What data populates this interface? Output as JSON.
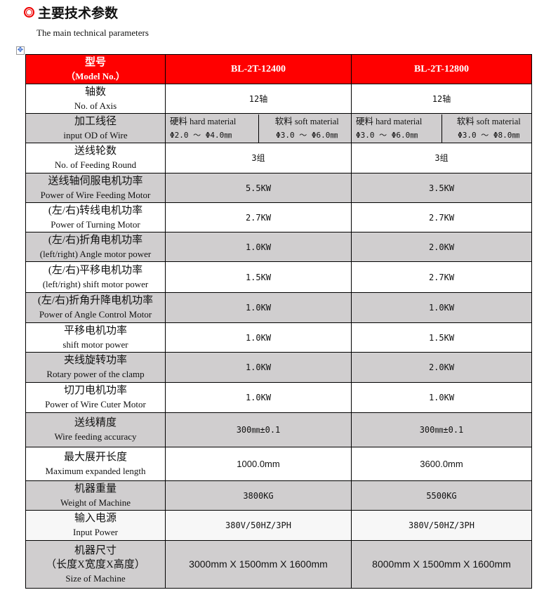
{
  "title": "主要技术参数",
  "subtitle": "The main technical parameters",
  "header": {
    "cn": "型号",
    "en": "（Model No.）",
    "models": [
      "BL-2T-12400",
      "BL-2T-12800"
    ]
  },
  "accent_color": "#ff0000",
  "rows": [
    {
      "cn": "轴数",
      "en": "No. of Axis",
      "values": [
        "12轴",
        "12轴"
      ],
      "shade": "white"
    },
    {
      "cn": "加工线径",
      "en": "input OD of Wire",
      "split": [
        [
          {
            "label": "硬料 hard material",
            "range": "Φ2.0 ～ Φ4.0㎜"
          },
          {
            "label": "软料 soft material",
            "range": "Φ3.0 ～ Φ6.0㎜"
          }
        ],
        [
          {
            "label": "硬料 hard material",
            "range": "Φ3.0 ～ Φ6.0㎜"
          },
          {
            "label": "软料 soft material",
            "range": "Φ3.0 ～ Φ8.0㎜"
          }
        ]
      ],
      "shade": "gray"
    },
    {
      "cn": "送线轮数",
      "en": "No. of Feeding Round",
      "values": [
        "3组",
        "3组"
      ],
      "shade": "white"
    },
    {
      "cn": "送线轴伺服电机功率",
      "en": "Power of Wire Feeding Motor",
      "values": [
        "5.5KW",
        "3.5KW"
      ],
      "shade": "gray"
    },
    {
      "cn": "(左/右)转线电机功率",
      "en": "Power of Turning Motor",
      "values": [
        "2.7KW",
        "2.7KW"
      ],
      "shade": "white"
    },
    {
      "cn": "(左/右)折角电机功率",
      "en": "(left/right) Angle motor power",
      "values": [
        "1.0KW",
        "2.0KW"
      ],
      "shade": "gray"
    },
    {
      "cn": "(左/右)平移电机功率",
      "en": "(left/right) shift motor power",
      "values": [
        "1.5KW",
        "2.7KW"
      ],
      "shade": "white"
    },
    {
      "cn": "(左/右)折角升降电机功率",
      "en": "Power of Angle Control Motor",
      "values": [
        "1.0KW",
        "1.0KW"
      ],
      "shade": "gray"
    },
    {
      "cn": "平移电机功率",
      "en": "shift motor power",
      "values": [
        "1.0KW",
        "1.5KW"
      ],
      "shade": "white"
    },
    {
      "cn": "夹线旋转功率",
      "en": "Rotary power of the clamp",
      "values": [
        "1.0KW",
        "2.0KW"
      ],
      "shade": "gray"
    },
    {
      "cn": "切刀电机功率",
      "en": "Power of Wire Cuter Motor",
      "values": [
        "1.0KW",
        "1.0KW"
      ],
      "shade": "white"
    },
    {
      "cn": "送线精度",
      "en": "Wire feeding accuracy",
      "values": [
        "300㎜±0.1",
        "300㎜±0.1"
      ],
      "shade": "gray"
    },
    {
      "cn": "最大展开长度",
      "en": "Maximum expanded length",
      "values": [
        "1000.0mm",
        "3600.0mm"
      ],
      "shade": "white"
    },
    {
      "cn": "机器重量",
      "en": "Weight of Machine",
      "values": [
        "3800KG",
        "5500KG"
      ],
      "shade": "gray"
    },
    {
      "cn": "输入电源",
      "en": "Input Power",
      "values": [
        "380V/50HZ/3PH",
        "380V/50HZ/3PH"
      ],
      "shade": "light"
    },
    {
      "cn": "机器尺寸",
      "cn2": "（长度X宽度X高度）",
      "en": "Size of Machine",
      "values": [
        "3000mm X 1500mm X 1600mm",
        "8000mm X 1500mm X 1600mm"
      ],
      "shade": "gray"
    }
  ]
}
